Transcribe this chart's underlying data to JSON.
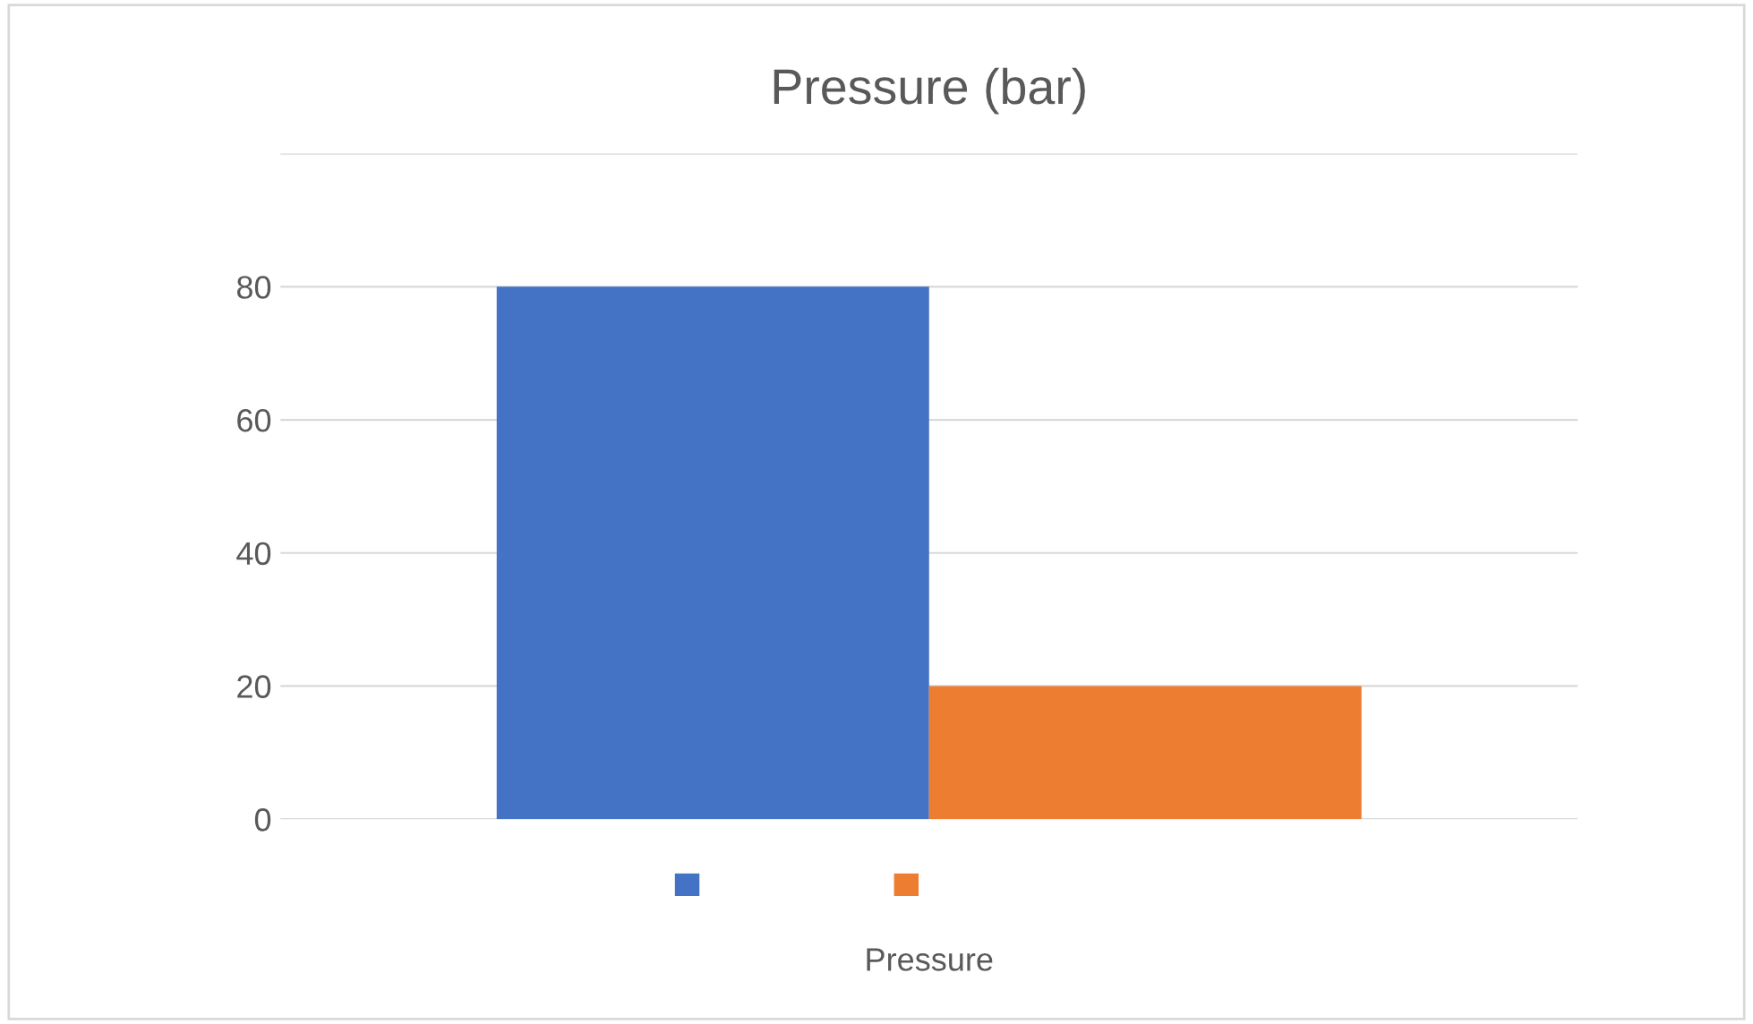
{
  "chart_data": {
    "type": "bar",
    "title": "Pressure (bar)",
    "categories": [
      null
    ],
    "xlabel": "Pressure",
    "series": [
      {
        "color": "#4472c4",
        "values": [
          80
        ]
      },
      {
        "color": "#ed7d31",
        "values": [
          20
        ]
      }
    ],
    "ylim": [
      0,
      100
    ],
    "yticks": [
      0,
      20,
      40,
      60,
      80,
      {
        "value": 100,
        "label": null
      }
    ],
    "grid": "y"
  }
}
